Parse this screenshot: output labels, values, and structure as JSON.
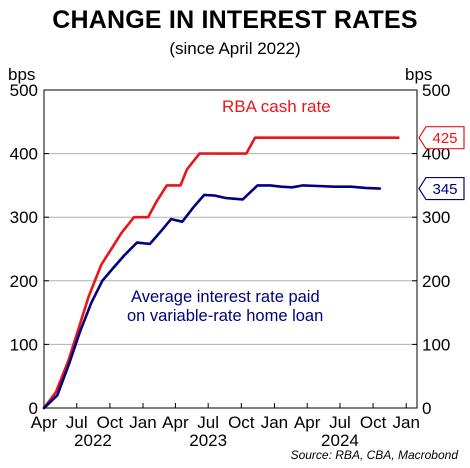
{
  "title": "CHANGE IN INTEREST RATES",
  "subtitle": "(since April 2022)",
  "source": "Source: RBA, CBA, Macrobond",
  "chart_data": {
    "type": "line",
    "title": "CHANGE IN INTEREST RATES",
    "subtitle": "(since April 2022)",
    "xlabel": "",
    "ylabel": "bps",
    "ylabel_right": "bps",
    "ylim": [
      0,
      500
    ],
    "yticks": [
      0,
      100,
      200,
      300,
      400,
      500
    ],
    "xlim": [
      "2022-04-01",
      "2025-01-31"
    ],
    "xticks": [
      {
        "date": "2022-04-01",
        "label": "Apr"
      },
      {
        "date": "2022-07-01",
        "label": "Jul"
      },
      {
        "date": "2022-10-01",
        "label": "Oct"
      },
      {
        "date": "2023-01-01",
        "label": "Jan"
      },
      {
        "date": "2023-04-01",
        "label": "Apr"
      },
      {
        "date": "2023-07-01",
        "label": "Jul"
      },
      {
        "date": "2023-10-01",
        "label": "Oct"
      },
      {
        "date": "2024-01-01",
        "label": "Jan"
      },
      {
        "date": "2024-04-01",
        "label": "Apr"
      },
      {
        "date": "2024-07-01",
        "label": "Jul"
      },
      {
        "date": "2024-10-01",
        "label": "Oct"
      },
      {
        "date": "2025-01-01",
        "label": "Jan"
      }
    ],
    "year_labels": [
      {
        "date": "2022-08-15",
        "label": "2022"
      },
      {
        "date": "2023-07-01",
        "label": "2023"
      },
      {
        "date": "2024-07-01",
        "label": "2024"
      }
    ],
    "grid": true,
    "series": [
      {
        "name": "RBA cash rate",
        "color": "#e8151b",
        "end_label": "425",
        "points": [
          [
            "2022-04-01",
            0
          ],
          [
            "2022-05-04",
            25
          ],
          [
            "2022-06-08",
            75
          ],
          [
            "2022-07-06",
            125
          ],
          [
            "2022-08-03",
            175
          ],
          [
            "2022-09-07",
            225
          ],
          [
            "2022-10-05",
            250
          ],
          [
            "2022-11-02",
            275
          ],
          [
            "2022-12-07",
            300
          ],
          [
            "2023-01-15",
            300
          ],
          [
            "2023-02-08",
            325
          ],
          [
            "2023-03-08",
            350
          ],
          [
            "2023-04-15",
            350
          ],
          [
            "2023-05-03",
            375
          ],
          [
            "2023-06-07",
            400
          ],
          [
            "2023-10-15",
            400
          ],
          [
            "2023-11-08",
            425
          ],
          [
            "2024-12-10",
            425
          ]
        ]
      },
      {
        "name": "Average interest rate paid on variable-rate home loan",
        "color": "#000080",
        "end_label": "345",
        "points": [
          [
            "2022-04-01",
            0
          ],
          [
            "2022-05-08",
            20
          ],
          [
            "2022-06-10",
            70
          ],
          [
            "2022-07-10",
            120
          ],
          [
            "2022-08-10",
            165
          ],
          [
            "2022-09-10",
            200
          ],
          [
            "2022-10-10",
            220
          ],
          [
            "2022-11-10",
            240
          ],
          [
            "2022-12-15",
            260
          ],
          [
            "2023-01-20",
            258
          ],
          [
            "2023-02-20",
            278
          ],
          [
            "2023-03-20",
            297
          ],
          [
            "2023-04-20",
            293
          ],
          [
            "2023-05-20",
            315
          ],
          [
            "2023-06-20",
            335
          ],
          [
            "2023-07-20",
            334
          ],
          [
            "2023-08-20",
            330
          ],
          [
            "2023-10-05",
            328
          ],
          [
            "2023-11-15",
            350
          ],
          [
            "2023-12-20",
            350
          ],
          [
            "2024-01-20",
            348
          ],
          [
            "2024-02-20",
            347
          ],
          [
            "2024-03-20",
            350
          ],
          [
            "2024-05-01",
            349
          ],
          [
            "2024-06-15",
            348
          ],
          [
            "2024-08-01",
            348
          ],
          [
            "2024-09-10",
            346
          ],
          [
            "2024-10-20",
            345
          ]
        ]
      }
    ],
    "annotations": [
      {
        "text": "RBA cash rate",
        "color": "#e8151b"
      },
      {
        "text": "Average interest rate paid",
        "color": "#000080"
      },
      {
        "text": "on variable-rate home loan",
        "color": "#000080"
      }
    ]
  }
}
